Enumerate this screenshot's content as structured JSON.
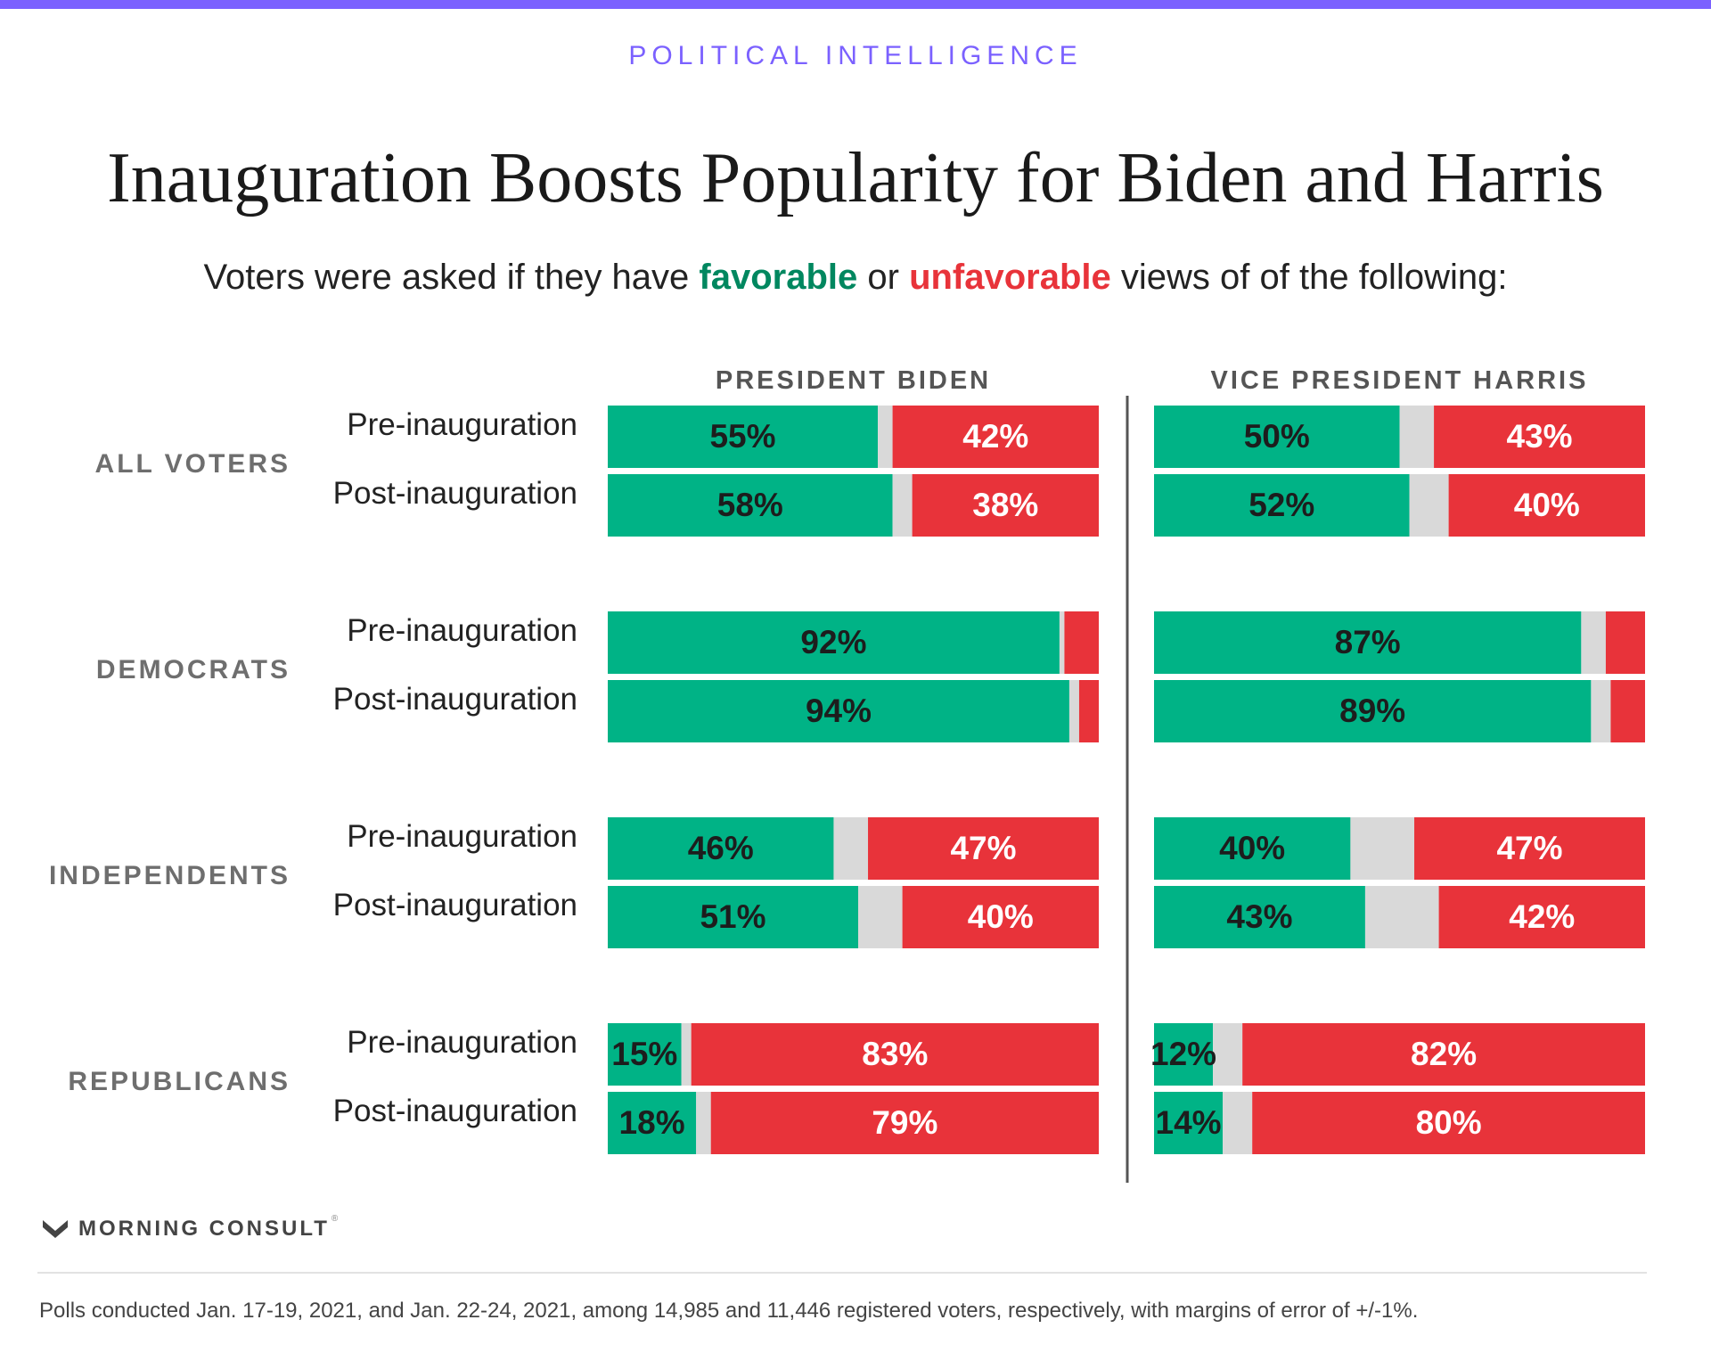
{
  "header": {
    "kicker": "POLITICAL INTELLIGENCE",
    "title": "Inauguration Boosts Popularity for Biden and Harris",
    "subtitle_parts": {
      "before": "Voters were asked if they have ",
      "favorable": "favorable",
      "middle": " or ",
      "unfavorable": "unfavorable",
      "after": " views of of the following:"
    }
  },
  "colors": {
    "accent": "#7b61ff",
    "favorable": "#00b386",
    "favorable_text": "#00875f",
    "unfavorable": "#e8333a",
    "neutral": "#d9d9d9",
    "group_label": "#6e6e6e",
    "divider": "#555555"
  },
  "chart_data": {
    "type": "bar",
    "orientation": "horizontal",
    "stacked": true,
    "xlim": [
      0,
      100
    ],
    "panels": [
      "PRESIDENT BIDEN",
      "VICE PRESIDENT HARRIS"
    ],
    "groups": [
      "ALL VOTERS",
      "DEMOCRATS",
      "INDEPENDENTS",
      "REPUBLICANS"
    ],
    "rows": [
      "Pre-inauguration",
      "Post-inauguration"
    ],
    "series": [
      {
        "name": "favorable",
        "values": {
          "PRESIDENT BIDEN": [
            [
              55,
              58
            ],
            [
              92,
              94
            ],
            [
              46,
              51
            ],
            [
              15,
              18
            ]
          ],
          "VICE PRESIDENT HARRIS": [
            [
              50,
              52
            ],
            [
              87,
              89
            ],
            [
              40,
              43
            ],
            [
              12,
              14
            ]
          ]
        }
      },
      {
        "name": "unfavorable",
        "values": {
          "PRESIDENT BIDEN": [
            [
              42,
              38
            ],
            [
              7,
              4
            ],
            [
              47,
              40
            ],
            [
              83,
              79
            ]
          ],
          "VICE PRESIDENT HARRIS": [
            [
              43,
              40
            ],
            [
              8,
              7
            ],
            [
              47,
              42
            ],
            [
              82,
              80
            ]
          ]
        }
      }
    ],
    "value_labels": {
      "PRESIDENT BIDEN": [
        [
          [
            "55%",
            "42%"
          ],
          [
            "58%",
            "38%"
          ]
        ],
        [
          [
            "92%",
            ""
          ],
          [
            "94%",
            ""
          ]
        ],
        [
          [
            "46%",
            "47%"
          ],
          [
            "51%",
            "40%"
          ]
        ],
        [
          [
            "15%",
            "83%"
          ],
          [
            "18%",
            "79%"
          ]
        ]
      ],
      "VICE PRESIDENT HARRIS": [
        [
          [
            "50%",
            "43%"
          ],
          [
            "52%",
            "40%"
          ]
        ],
        [
          [
            "87%",
            ""
          ],
          [
            "89%",
            ""
          ]
        ],
        [
          [
            "40%",
            "47%"
          ],
          [
            "43%",
            "42%"
          ]
        ],
        [
          [
            "12%",
            "82%"
          ],
          [
            "14%",
            "80%"
          ]
        ]
      ]
    }
  },
  "brand": {
    "name": "MORNING CONSULT",
    "mark": "®"
  },
  "footnote": "Polls conducted Jan. 17-19, 2021, and Jan. 22-24, 2021, among 14,985 and 11,446 registered voters, respectively, with margins of error of +/-1%."
}
